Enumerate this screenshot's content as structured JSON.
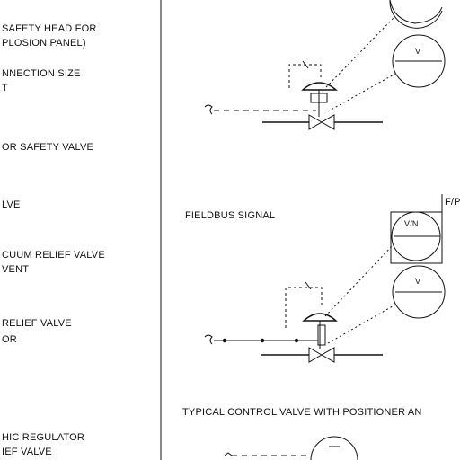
{
  "legend": {
    "items": [
      {
        "line1": "SAFETY HEAD FOR",
        "line2": "PLOSION PANEL)"
      },
      {
        "line1": "NNECTION SIZE",
        "line2": "T"
      },
      {
        "line1": "OR SAFETY VALVE",
        "line2": ""
      },
      {
        "line1": "LVE",
        "line2": ""
      },
      {
        "line1": "CUUM RELIEF VALVE",
        "line2": "VENT"
      },
      {
        "line1": "RELIEF VALVE",
        "line2": "OR"
      },
      {
        "line1": "HIC REGULATOR",
        "line2": "IEF VALVE"
      }
    ]
  },
  "diagram": {
    "fieldbus_label": "FIELDBUS SIGNAL",
    "fp_label": "F/P",
    "positioner_symbol": "V/N",
    "valve_symbol": "V",
    "caption": "TYPICAL CONTROL VALVE WITH POSITIONER AN"
  }
}
